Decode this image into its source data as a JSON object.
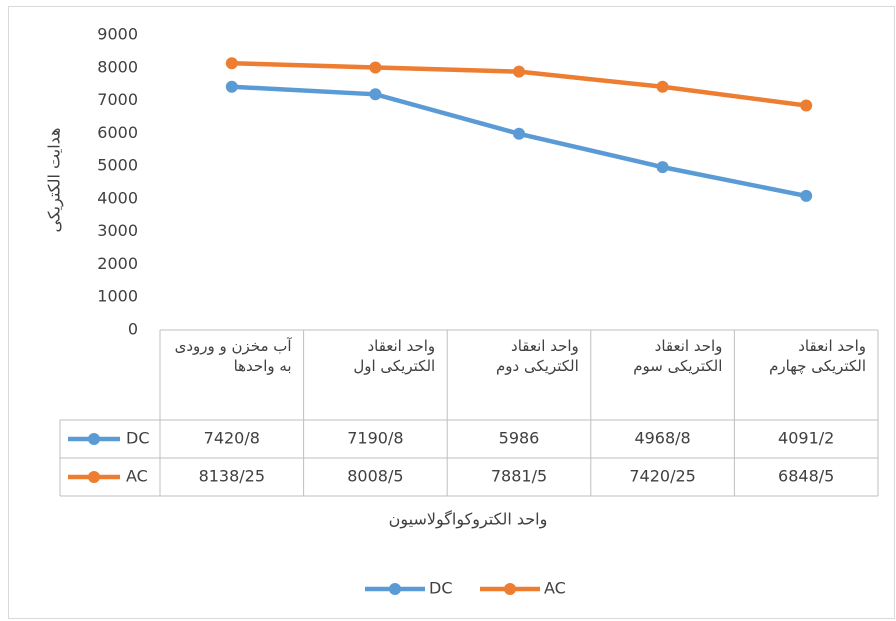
{
  "chart_data": {
    "type": "line",
    "y_axis_label": "هدایت الکتریکی",
    "x_axis_label": "واحد الکتروکواگولاسیون",
    "categories": [
      "آب مخزن و ورودی به واحدها",
      "واحد انعقاد الکتریکی اول",
      "واحد انعقاد الکتریکی دوم",
      "واحد انعقاد الکتریکی سوم",
      "واحد انعقاد الکتریکی چهارم"
    ],
    "series": [
      {
        "name": "DC",
        "color": "#5b9bd5",
        "values": [
          7420.8,
          7190.8,
          5986,
          4968.8,
          4091.2
        ],
        "value_labels": [
          "7420/8",
          "7190/8",
          "5986",
          "4968/8",
          "4091/2"
        ]
      },
      {
        "name": "AC",
        "color": "#ed7d31",
        "values": [
          8138.25,
          8008.5,
          7881.5,
          7420.25,
          6848.5
        ],
        "value_labels": [
          "8138/25",
          "8008/5",
          "7881/5",
          "7420/25",
          "6848/5"
        ]
      }
    ],
    "ylim": [
      0,
      9000
    ],
    "yticks": [
      0,
      1000,
      2000,
      3000,
      4000,
      5000,
      6000,
      7000,
      8000,
      9000
    ],
    "grid": false,
    "legend": "bottom",
    "data_table": true
  }
}
